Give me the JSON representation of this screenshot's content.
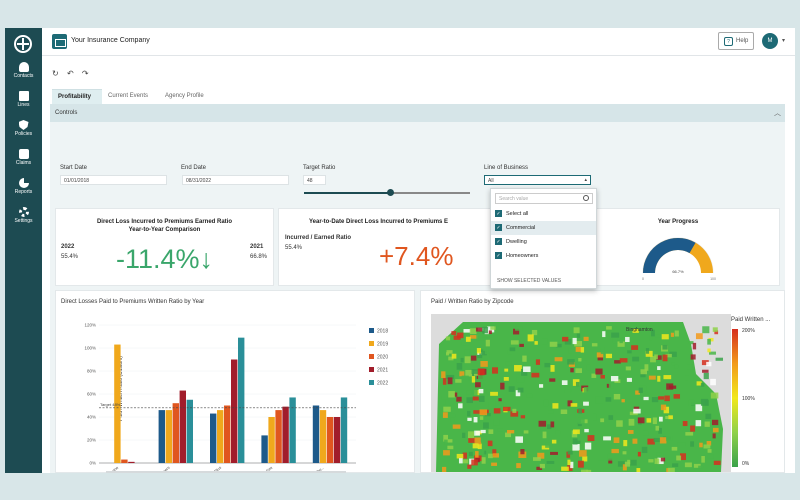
{
  "header": {
    "company": "Your Insurance Company",
    "help_label": "Help",
    "avatar_initial": "M"
  },
  "sidebar": {
    "items": [
      {
        "label": "Contacts",
        "icon": "person-icon"
      },
      {
        "label": "Lines",
        "icon": "book-icon"
      },
      {
        "label": "Policies",
        "icon": "shield-icon"
      },
      {
        "label": "Claims",
        "icon": "bag-icon"
      },
      {
        "label": "Reports",
        "icon": "pie-icon"
      },
      {
        "label": "Settings",
        "icon": "gear-icon"
      }
    ]
  },
  "toolbar": {
    "refresh": "↻",
    "undo": "↶",
    "redo": "↷"
  },
  "tabs": [
    {
      "label": "Profitability",
      "active": true
    },
    {
      "label": "Current Events"
    },
    {
      "label": "Agency Profile"
    }
  ],
  "controls": {
    "title": "Controls",
    "start_date_label": "Start Date",
    "start_date": "01/01/2018",
    "end_date_label": "End Date",
    "end_date": "08/31/2022",
    "target_ratio_label": "Target Ratio",
    "target_ratio": "48",
    "target_ratio_slider": 0.52,
    "lob_label": "Line of Business",
    "lob_value": "All",
    "lob_search_placeholder": "Search value",
    "lob_options": [
      "Select all",
      "Commercial",
      "Dwelling",
      "Homeowners"
    ],
    "lob_footer": "SHOW SELECTED VALUES"
  },
  "kpi1": {
    "title": "Direct Loss Incurred to Premiums Earned Ratio",
    "subtitle": "Year-to-Year Comparison",
    "left_year": "2022",
    "left_value": "55.4%",
    "right_year": "2021",
    "right_value": "66.8%",
    "change": "-11.4%↓",
    "change_color": "#3aa66b"
  },
  "kpi2": {
    "title": "Year-to-Date Direct Loss Incurred to Premiums E",
    "label": "Incurred / Earned Ratio",
    "value": "55.4%",
    "change": "+7.4%",
    "change_color": "#e0561f"
  },
  "kpi3": {
    "title": "Year Progress",
    "progress": 0.667,
    "value_label": "66.7%",
    "min": "0",
    "max": "100"
  },
  "bar_panel": {
    "title": "Direct Losses Paid to Premiums Written Ratio by Year",
    "ylabel": "Paid / Written Ratio (Custom)",
    "target_label": "Target 48%"
  },
  "map_panel": {
    "title": "Paid / Written Ratio by Zipcode",
    "legend_title": "Paid Written ...",
    "legend_max": "200%",
    "legend_mid": "100%",
    "legend_min": "0%",
    "city_top": "Binghamton"
  },
  "colors": {
    "sidebar": "#1d4b52",
    "accent": "#1d6a75",
    "good": "#3aa66b",
    "bad": "#e0561f"
  },
  "chart_data": {
    "type": "bar",
    "categories": [
      "Inland Marine",
      "Homeowners",
      "HomeownersPlus",
      "Dwelling Fire",
      "Business Ow..."
    ],
    "series": [
      {
        "name": "2018",
        "color": "#1d5a8a",
        "values": [
          0,
          46,
          43,
          24,
          50
        ]
      },
      {
        "name": "2019",
        "color": "#f0a81c",
        "values": [
          103,
          46,
          46,
          40,
          46
        ]
      },
      {
        "name": "2020",
        "color": "#e0561f",
        "values": [
          3,
          52,
          50,
          46,
          40
        ]
      },
      {
        "name": "2021",
        "color": "#a11d2b",
        "values": [
          1,
          63,
          90,
          49,
          40
        ]
      },
      {
        "name": "2022",
        "color": "#2a8f99",
        "values": [
          0,
          55,
          109,
          57,
          57
        ]
      }
    ],
    "yticks": [
      "0%",
      "20%",
      "40%",
      "60%",
      "80%",
      "100%",
      "120%"
    ],
    "ylim": [
      0,
      120
    ],
    "target": 48
  }
}
